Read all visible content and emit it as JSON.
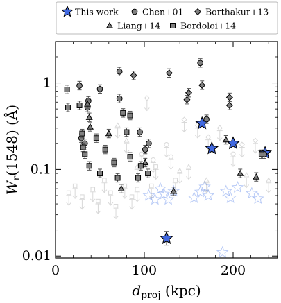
{
  "chart_data": {
    "type": "scatter",
    "xlabel": "d_proj (kpc)",
    "xlabel_main": "d",
    "xlabel_sub": "proj",
    "xlabel_unit": " (kpc)",
    "ylabel": "W_r(1548) (Å)",
    "ylabel_main": "W",
    "ylabel_sub": "r",
    "ylabel_rest": "(1548) (Å)",
    "xlim": [
      0,
      250
    ],
    "ylim": [
      0.0095,
      3.0
    ],
    "yscale": "log",
    "xticks": [
      0,
      100,
      200
    ],
    "xtick_labels": [
      "0",
      "100",
      "200"
    ],
    "yticks": [
      0.01,
      0.1,
      1
    ],
    "ytick_labels": [
      "0.01",
      "0.1",
      "1"
    ],
    "legend_position": "top, above plot",
    "legend_entries": [
      "This work",
      "Chen+01",
      "Borthakur+13",
      "Liang+14",
      "Bordoloi+14"
    ],
    "series": [
      {
        "name": "This work",
        "marker": "star",
        "color": "#4169e1",
        "detections": [
          {
            "x": 125,
            "y": 0.016,
            "yerr": 0.2
          },
          {
            "x": 165,
            "y": 0.34,
            "yerr": 0.05
          },
          {
            "x": 176,
            "y": 0.175,
            "yerr": 0.06
          },
          {
            "x": 200,
            "y": 0.2,
            "yerr": 0.06
          },
          {
            "x": 236,
            "y": 0.155,
            "yerr": 0.06
          }
        ],
        "upper_limits": [
          {
            "x": 105,
            "y": 0.05
          },
          {
            "x": 112,
            "y": 0.045
          },
          {
            "x": 118,
            "y": 0.06
          },
          {
            "x": 122,
            "y": 0.052
          },
          {
            "x": 127,
            "y": 0.045
          },
          {
            "x": 133,
            "y": 0.056
          },
          {
            "x": 156,
            "y": 0.047
          },
          {
            "x": 163,
            "y": 0.055
          },
          {
            "x": 168,
            "y": 0.063
          },
          {
            "x": 172,
            "y": 0.05
          },
          {
            "x": 188,
            "y": 0.011
          },
          {
            "x": 192,
            "y": 0.056
          },
          {
            "x": 197,
            "y": 0.047
          },
          {
            "x": 205,
            "y": 0.062
          },
          {
            "x": 221,
            "y": 0.053
          },
          {
            "x": 228,
            "y": 0.046
          }
        ]
      },
      {
        "name": "Chen+01",
        "marker": "circle",
        "color": "#808080",
        "detections": [
          {
            "x": 27,
            "y": 0.93
          },
          {
            "x": 29,
            "y": 0.23
          },
          {
            "x": 33,
            "y": 0.2
          },
          {
            "x": 36,
            "y": 0.52
          },
          {
            "x": 37,
            "y": 0.62
          },
          {
            "x": 50,
            "y": 0.85
          },
          {
            "x": 72,
            "y": 1.35
          },
          {
            "x": 72,
            "y": 0.66
          },
          {
            "x": 95,
            "y": 0.27
          },
          {
            "x": 101,
            "y": 0.17
          },
          {
            "x": 105,
            "y": 0.2
          },
          {
            "x": 163,
            "y": 1.7
          },
          {
            "x": 170,
            "y": 0.38
          },
          {
            "x": 235,
            "y": 0.15
          }
        ],
        "upper_limits": [
          {
            "x": 97,
            "y": 0.14
          },
          {
            "x": 110,
            "y": 0.12
          },
          {
            "x": 125,
            "y": 0.18
          },
          {
            "x": 130,
            "y": 0.13
          },
          {
            "x": 200,
            "y": 0.14
          }
        ]
      },
      {
        "name": "Borthakur+13",
        "marker": "diamond",
        "color": "#808080",
        "detections": [
          {
            "x": 88,
            "y": 1.22
          },
          {
            "x": 128,
            "y": 1.3
          },
          {
            "x": 148,
            "y": 0.64
          },
          {
            "x": 150,
            "y": 0.77
          },
          {
            "x": 165,
            "y": 0.94
          },
          {
            "x": 196,
            "y": 0.68
          },
          {
            "x": 196,
            "y": 0.55
          }
        ],
        "upper_limits": [
          {
            "x": 103,
            "y": 0.62
          },
          {
            "x": 145,
            "y": 0.35
          },
          {
            "x": 160,
            "y": 0.3
          },
          {
            "x": 172,
            "y": 0.22
          },
          {
            "x": 185,
            "y": 0.28
          },
          {
            "x": 210,
            "y": 0.18
          },
          {
            "x": 225,
            "y": 0.2
          }
        ]
      },
      {
        "name": "Liang+14",
        "marker": "triangle",
        "color": "#808080",
        "detections": [
          {
            "x": 36,
            "y": 0.57
          },
          {
            "x": 38,
            "y": 0.4
          },
          {
            "x": 39,
            "y": 0.31
          },
          {
            "x": 60,
            "y": 0.26
          },
          {
            "x": 74,
            "y": 0.06
          },
          {
            "x": 101,
            "y": 0.12
          },
          {
            "x": 133,
            "y": 0.056
          },
          {
            "x": 192,
            "y": 0.22
          },
          {
            "x": 208,
            "y": 0.09
          },
          {
            "x": 226,
            "y": 0.082
          }
        ],
        "upper_limits": [
          {
            "x": 70,
            "y": 0.3
          },
          {
            "x": 80,
            "y": 0.2
          },
          {
            "x": 92,
            "y": 0.1
          },
          {
            "x": 140,
            "y": 0.09
          },
          {
            "x": 150,
            "y": 0.1
          },
          {
            "x": 170,
            "y": 0.07
          },
          {
            "x": 215,
            "y": 0.08
          },
          {
            "x": 240,
            "y": 0.07
          }
        ]
      },
      {
        "name": "Bordoloi+14",
        "marker": "square",
        "color": "#808080",
        "detections": [
          {
            "x": 13,
            "y": 0.84
          },
          {
            "x": 14,
            "y": 0.52
          },
          {
            "x": 27,
            "y": 0.55
          },
          {
            "x": 30,
            "y": 0.26
          },
          {
            "x": 31,
            "y": 0.18
          },
          {
            "x": 33,
            "y": 0.15
          },
          {
            "x": 38,
            "y": 0.11
          },
          {
            "x": 46,
            "y": 0.23
          },
          {
            "x": 50,
            "y": 0.09
          },
          {
            "x": 56,
            "y": 0.17
          },
          {
            "x": 66,
            "y": 0.12
          },
          {
            "x": 70,
            "y": 0.08
          },
          {
            "x": 76,
            "y": 0.45
          },
          {
            "x": 80,
            "y": 0.27
          },
          {
            "x": 84,
            "y": 0.42
          },
          {
            "x": 84,
            "y": 0.14
          },
          {
            "x": 93,
            "y": 0.08
          },
          {
            "x": 96,
            "y": 0.11
          },
          {
            "x": 104,
            "y": 0.09
          },
          {
            "x": 232,
            "y": 0.15
          }
        ],
        "upper_limits": [
          {
            "x": 15,
            "y": 0.05
          },
          {
            "x": 22,
            "y": 0.06
          },
          {
            "x": 30,
            "y": 0.045
          },
          {
            "x": 42,
            "y": 0.055
          },
          {
            "x": 48,
            "y": 0.04
          },
          {
            "x": 55,
            "y": 0.07
          },
          {
            "x": 62,
            "y": 0.05
          },
          {
            "x": 68,
            "y": 0.035
          },
          {
            "x": 78,
            "y": 0.06
          },
          {
            "x": 86,
            "y": 0.045
          },
          {
            "x": 92,
            "y": 0.055
          },
          {
            "x": 108,
            "y": 0.06
          },
          {
            "x": 113,
            "y": 0.1
          },
          {
            "x": 135,
            "y": 0.07
          }
        ]
      }
    ]
  }
}
